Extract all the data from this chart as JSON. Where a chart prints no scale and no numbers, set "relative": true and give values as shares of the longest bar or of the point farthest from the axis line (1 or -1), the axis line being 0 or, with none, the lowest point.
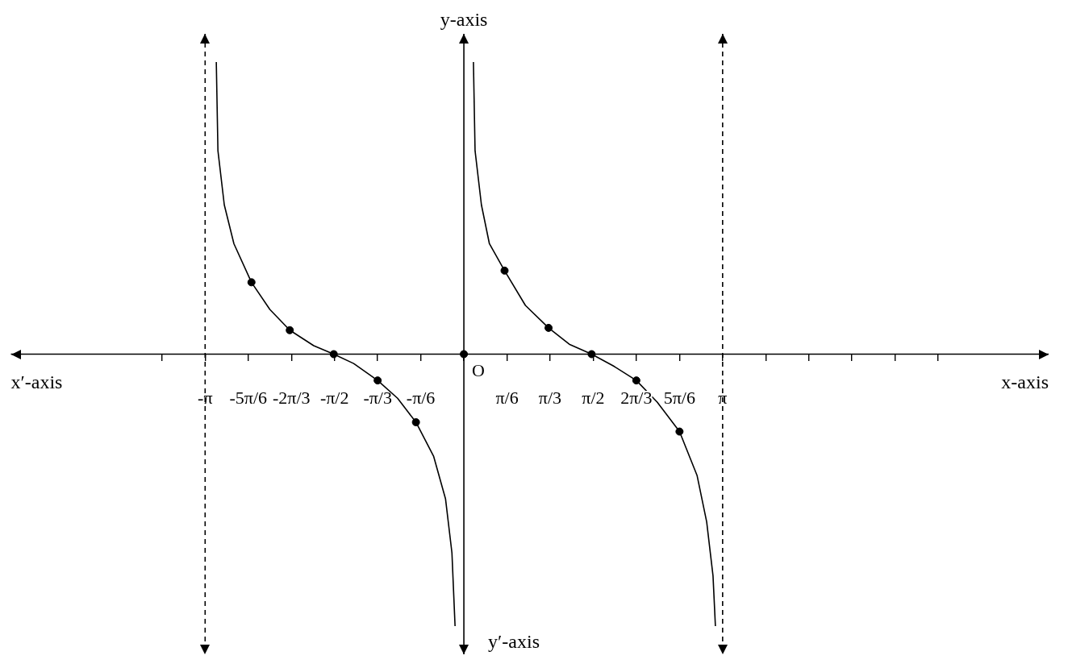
{
  "chart_data": {
    "type": "line",
    "xlabel": "x-axis",
    "ylabel": "y-axis",
    "annotations": [
      "x′-axis",
      "y′-axis",
      {
        "text": "O",
        "x": 0,
        "y": 0
      }
    ],
    "relative": true,
    "xlim": [
      -5.5,
      7.1
    ],
    "grid": false,
    "legend": false,
    "line_style": "solid",
    "marker": "none",
    "xticks": [
      {
        "value": -3.665,
        "label": null
      },
      {
        "value": -3.1416,
        "label": "-π"
      },
      {
        "value": -2.618,
        "label": "-5π/6"
      },
      {
        "value": -2.094,
        "label": "-2π/3"
      },
      {
        "value": -1.571,
        "label": "-π/2"
      },
      {
        "value": -1.047,
        "label": "-π/3"
      },
      {
        "value": -0.524,
        "label": "-π/6"
      },
      {
        "value": 0,
        "label": null
      },
      {
        "value": 0.524,
        "label": "π/6"
      },
      {
        "value": 1.047,
        "label": "π/3"
      },
      {
        "value": 1.571,
        "label": "π/2"
      },
      {
        "value": 2.094,
        "label": "2π/3"
      },
      {
        "value": 2.618,
        "label": "5π/6"
      },
      {
        "value": 3.1416,
        "label": "π"
      },
      {
        "value": 3.665,
        "label": null
      },
      {
        "value": 4.189,
        "label": null
      },
      {
        "value": 4.712,
        "label": null
      },
      {
        "value": 5.236,
        "label": null
      },
      {
        "value": 5.76,
        "label": null
      }
    ],
    "ref_lines": [
      {
        "axis": "x",
        "value": -3.1416,
        "line_style": "dashed",
        "color": "#000000"
      },
      {
        "axis": "x",
        "value": 3.1416,
        "line_style": "dashed",
        "color": "#000000"
      }
    ],
    "series": [
      {
        "color": "#000000",
        "x": [
          -3.006,
          -2.986,
          -2.909,
          -2.792,
          -2.579,
          -2.356,
          -2.114,
          -1.823,
          -1.58,
          -1.338,
          -1.047,
          -0.805,
          -0.582,
          -0.368,
          -0.223,
          -0.145,
          -0.107
        ],
        "values": [
          1.0,
          0.696,
          0.511,
          0.378,
          0.246,
          0.153,
          0.082,
          0.029,
          0,
          -0.032,
          -0.09,
          -0.151,
          -0.233,
          -0.349,
          -0.495,
          -0.68,
          -0.931
        ]
      },
      {
        "color": "#000000",
        "x": [
          0.116,
          0.136,
          0.213,
          0.31,
          0.494,
          0.747,
          1.028,
          1.28,
          1.551,
          1.813,
          2.094,
          2.347,
          2.618,
          2.831,
          2.948,
          3.025,
          3.054
        ],
        "values": [
          1.0,
          0.696,
          0.511,
          0.378,
          0.286,
          0.167,
          0.09,
          0.034,
          0,
          -0.04,
          -0.09,
          -0.164,
          -0.265,
          -0.415,
          -0.574,
          -0.759,
          -0.931
        ]
      },
      {
        "type": "scatter",
        "marker": "circle",
        "color": "#000000",
        "x": [
          -2.579,
          -2.114,
          -1.58,
          -1.047,
          -0.582,
          0,
          0.494,
          1.028,
          1.551,
          2.094,
          2.618
        ],
        "values": [
          0.246,
          0.082,
          0,
          -0.09,
          -0.233,
          0,
          0.286,
          0.09,
          0,
          -0.09,
          -0.265
        ]
      }
    ]
  }
}
